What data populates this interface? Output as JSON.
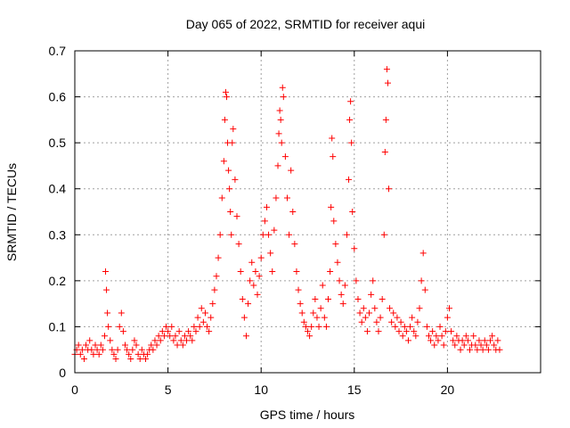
{
  "chart_data": {
    "type": "scatter",
    "title": "Day 065 of 2022, SRMTID for receiver aqui",
    "xlabel": "GPS time / hours",
    "ylabel": "SRMTID / TECUs",
    "xlim": [
      0,
      25
    ],
    "ylim": [
      0,
      0.7
    ],
    "xticks": [
      0,
      5,
      10,
      15,
      20
    ],
    "xtick_labels": [
      "0",
      "5",
      "10",
      "15",
      "20"
    ],
    "yticks": [
      0,
      0.1,
      0.2,
      0.3,
      0.4,
      0.5,
      0.6,
      0.7
    ],
    "ytick_labels": [
      "0",
      "0.1",
      "0.2",
      "0.3",
      "0.4",
      "0.5",
      "0.6",
      "0.7"
    ],
    "grid": true,
    "marker": "plus",
    "color": "#ff0000",
    "series": [
      {
        "name": "SRMTID",
        "points": [
          [
            0.0,
            0.04
          ],
          [
            0.1,
            0.05
          ],
          [
            0.2,
            0.06
          ],
          [
            0.3,
            0.04
          ],
          [
            0.4,
            0.05
          ],
          [
            0.5,
            0.03
          ],
          [
            0.6,
            0.06
          ],
          [
            0.7,
            0.05
          ],
          [
            0.8,
            0.07
          ],
          [
            0.9,
            0.05
          ],
          [
            1.0,
            0.04
          ],
          [
            1.1,
            0.06
          ],
          [
            1.2,
            0.05
          ],
          [
            1.3,
            0.04
          ],
          [
            1.4,
            0.06
          ],
          [
            1.5,
            0.05
          ],
          [
            1.6,
            0.08
          ],
          [
            1.65,
            0.22
          ],
          [
            1.7,
            0.18
          ],
          [
            1.75,
            0.13
          ],
          [
            1.8,
            0.1
          ],
          [
            1.9,
            0.07
          ],
          [
            2.0,
            0.05
          ],
          [
            2.1,
            0.04
          ],
          [
            2.2,
            0.03
          ],
          [
            2.3,
            0.05
          ],
          [
            2.4,
            0.1
          ],
          [
            2.5,
            0.13
          ],
          [
            2.6,
            0.09
          ],
          [
            2.7,
            0.06
          ],
          [
            2.8,
            0.05
          ],
          [
            2.9,
            0.04
          ],
          [
            3.0,
            0.03
          ],
          [
            3.1,
            0.05
          ],
          [
            3.2,
            0.07
          ],
          [
            3.3,
            0.06
          ],
          [
            3.4,
            0.04
          ],
          [
            3.5,
            0.03
          ],
          [
            3.6,
            0.05
          ],
          [
            3.7,
            0.04
          ],
          [
            3.8,
            0.03
          ],
          [
            3.9,
            0.04
          ],
          [
            4.0,
            0.05
          ],
          [
            4.1,
            0.06
          ],
          [
            4.2,
            0.05
          ],
          [
            4.3,
            0.07
          ],
          [
            4.4,
            0.06
          ],
          [
            4.5,
            0.08
          ],
          [
            4.6,
            0.07
          ],
          [
            4.7,
            0.09
          ],
          [
            4.8,
            0.08
          ],
          [
            4.9,
            0.1
          ],
          [
            5.0,
            0.09
          ],
          [
            5.1,
            0.08
          ],
          [
            5.2,
            0.1
          ],
          [
            5.3,
            0.07
          ],
          [
            5.4,
            0.08
          ],
          [
            5.5,
            0.06
          ],
          [
            5.6,
            0.09
          ],
          [
            5.7,
            0.07
          ],
          [
            5.8,
            0.06
          ],
          [
            5.9,
            0.08
          ],
          [
            6.0,
            0.07
          ],
          [
            6.1,
            0.09
          ],
          [
            6.2,
            0.08
          ],
          [
            6.3,
            0.07
          ],
          [
            6.4,
            0.1
          ],
          [
            6.5,
            0.09
          ],
          [
            6.6,
            0.12
          ],
          [
            6.7,
            0.1
          ],
          [
            6.8,
            0.14
          ],
          [
            6.9,
            0.11
          ],
          [
            7.0,
            0.13
          ],
          [
            7.1,
            0.1
          ],
          [
            7.2,
            0.09
          ],
          [
            7.3,
            0.12
          ],
          [
            7.4,
            0.15
          ],
          [
            7.5,
            0.18
          ],
          [
            7.6,
            0.21
          ],
          [
            7.7,
            0.25
          ],
          [
            7.8,
            0.3
          ],
          [
            7.9,
            0.38
          ],
          [
            8.0,
            0.46
          ],
          [
            8.05,
            0.55
          ],
          [
            8.1,
            0.61
          ],
          [
            8.15,
            0.6
          ],
          [
            8.2,
            0.5
          ],
          [
            8.25,
            0.44
          ],
          [
            8.3,
            0.4
          ],
          [
            8.35,
            0.35
          ],
          [
            8.4,
            0.3
          ],
          [
            8.45,
            0.5
          ],
          [
            8.5,
            0.53
          ],
          [
            8.6,
            0.42
          ],
          [
            8.7,
            0.34
          ],
          [
            8.8,
            0.28
          ],
          [
            8.9,
            0.22
          ],
          [
            9.0,
            0.16
          ],
          [
            9.1,
            0.12
          ],
          [
            9.2,
            0.08
          ],
          [
            9.3,
            0.15
          ],
          [
            9.4,
            0.2
          ],
          [
            9.5,
            0.24
          ],
          [
            9.6,
            0.19
          ],
          [
            9.7,
            0.22
          ],
          [
            9.8,
            0.17
          ],
          [
            9.9,
            0.21
          ],
          [
            10.0,
            0.25
          ],
          [
            10.1,
            0.3
          ],
          [
            10.2,
            0.33
          ],
          [
            10.3,
            0.36
          ],
          [
            10.4,
            0.3
          ],
          [
            10.5,
            0.26
          ],
          [
            10.6,
            0.22
          ],
          [
            10.7,
            0.31
          ],
          [
            10.8,
            0.38
          ],
          [
            10.9,
            0.45
          ],
          [
            10.95,
            0.52
          ],
          [
            11.0,
            0.57
          ],
          [
            11.05,
            0.55
          ],
          [
            11.1,
            0.5
          ],
          [
            11.15,
            0.62
          ],
          [
            11.2,
            0.6
          ],
          [
            11.3,
            0.47
          ],
          [
            11.4,
            0.38
          ],
          [
            11.5,
            0.3
          ],
          [
            11.6,
            0.44
          ],
          [
            11.7,
            0.35
          ],
          [
            11.8,
            0.28
          ],
          [
            11.9,
            0.22
          ],
          [
            12.0,
            0.18
          ],
          [
            12.1,
            0.15
          ],
          [
            12.2,
            0.13
          ],
          [
            12.3,
            0.11
          ],
          [
            12.4,
            0.1
          ],
          [
            12.5,
            0.09
          ],
          [
            12.6,
            0.08
          ],
          [
            12.7,
            0.1
          ],
          [
            12.8,
            0.13
          ],
          [
            12.9,
            0.16
          ],
          [
            13.0,
            0.12
          ],
          [
            13.1,
            0.1
          ],
          [
            13.2,
            0.14
          ],
          [
            13.3,
            0.19
          ],
          [
            13.4,
            0.12
          ],
          [
            13.5,
            0.1
          ],
          [
            13.6,
            0.16
          ],
          [
            13.7,
            0.22
          ],
          [
            13.75,
            0.36
          ],
          [
            13.8,
            0.51
          ],
          [
            13.85,
            0.47
          ],
          [
            13.9,
            0.33
          ],
          [
            14.0,
            0.28
          ],
          [
            14.1,
            0.24
          ],
          [
            14.2,
            0.2
          ],
          [
            14.3,
            0.17
          ],
          [
            14.4,
            0.15
          ],
          [
            14.5,
            0.19
          ],
          [
            14.6,
            0.3
          ],
          [
            14.7,
            0.42
          ],
          [
            14.75,
            0.55
          ],
          [
            14.8,
            0.59
          ],
          [
            14.85,
            0.5
          ],
          [
            14.9,
            0.35
          ],
          [
            15.0,
            0.27
          ],
          [
            15.1,
            0.2
          ],
          [
            15.2,
            0.16
          ],
          [
            15.3,
            0.13
          ],
          [
            15.4,
            0.11
          ],
          [
            15.5,
            0.14
          ],
          [
            15.6,
            0.12
          ],
          [
            15.7,
            0.09
          ],
          [
            15.8,
            0.13
          ],
          [
            15.9,
            0.17
          ],
          [
            16.0,
            0.2
          ],
          [
            16.1,
            0.14
          ],
          [
            16.2,
            0.11
          ],
          [
            16.3,
            0.09
          ],
          [
            16.4,
            0.12
          ],
          [
            16.5,
            0.16
          ],
          [
            16.6,
            0.3
          ],
          [
            16.65,
            0.48
          ],
          [
            16.7,
            0.55
          ],
          [
            16.75,
            0.66
          ],
          [
            16.8,
            0.63
          ],
          [
            16.85,
            0.4
          ],
          [
            16.9,
            0.14
          ],
          [
            17.0,
            0.11
          ],
          [
            17.1,
            0.13
          ],
          [
            17.2,
            0.1
          ],
          [
            17.3,
            0.12
          ],
          [
            17.4,
            0.09
          ],
          [
            17.5,
            0.11
          ],
          [
            17.6,
            0.08
          ],
          [
            17.7,
            0.1
          ],
          [
            17.8,
            0.09
          ],
          [
            17.9,
            0.07
          ],
          [
            18.0,
            0.1
          ],
          [
            18.1,
            0.12
          ],
          [
            18.2,
            0.09
          ],
          [
            18.3,
            0.08
          ],
          [
            18.4,
            0.11
          ],
          [
            18.5,
            0.14
          ],
          [
            18.6,
            0.2
          ],
          [
            18.7,
            0.26
          ],
          [
            18.8,
            0.18
          ],
          [
            18.9,
            0.1
          ],
          [
            19.0,
            0.08
          ],
          [
            19.1,
            0.07
          ],
          [
            19.2,
            0.09
          ],
          [
            19.3,
            0.06
          ],
          [
            19.4,
            0.08
          ],
          [
            19.5,
            0.07
          ],
          [
            19.6,
            0.1
          ],
          [
            19.7,
            0.08
          ],
          [
            19.8,
            0.06
          ],
          [
            19.9,
            0.09
          ],
          [
            20.0,
            0.12
          ],
          [
            20.1,
            0.14
          ],
          [
            20.2,
            0.09
          ],
          [
            20.3,
            0.07
          ],
          [
            20.4,
            0.06
          ],
          [
            20.5,
            0.08
          ],
          [
            20.6,
            0.07
          ],
          [
            20.7,
            0.05
          ],
          [
            20.8,
            0.07
          ],
          [
            20.9,
            0.06
          ],
          [
            21.0,
            0.08
          ],
          [
            21.1,
            0.07
          ],
          [
            21.2,
            0.05
          ],
          [
            21.3,
            0.06
          ],
          [
            21.4,
            0.08
          ],
          [
            21.5,
            0.06
          ],
          [
            21.6,
            0.05
          ],
          [
            21.7,
            0.07
          ],
          [
            21.8,
            0.06
          ],
          [
            21.9,
            0.05
          ],
          [
            22.0,
            0.07
          ],
          [
            22.1,
            0.06
          ],
          [
            22.2,
            0.05
          ],
          [
            22.3,
            0.07
          ],
          [
            22.4,
            0.08
          ],
          [
            22.5,
            0.06
          ],
          [
            22.6,
            0.05
          ],
          [
            22.7,
            0.07
          ],
          [
            22.8,
            0.05
          ]
        ]
      }
    ]
  }
}
